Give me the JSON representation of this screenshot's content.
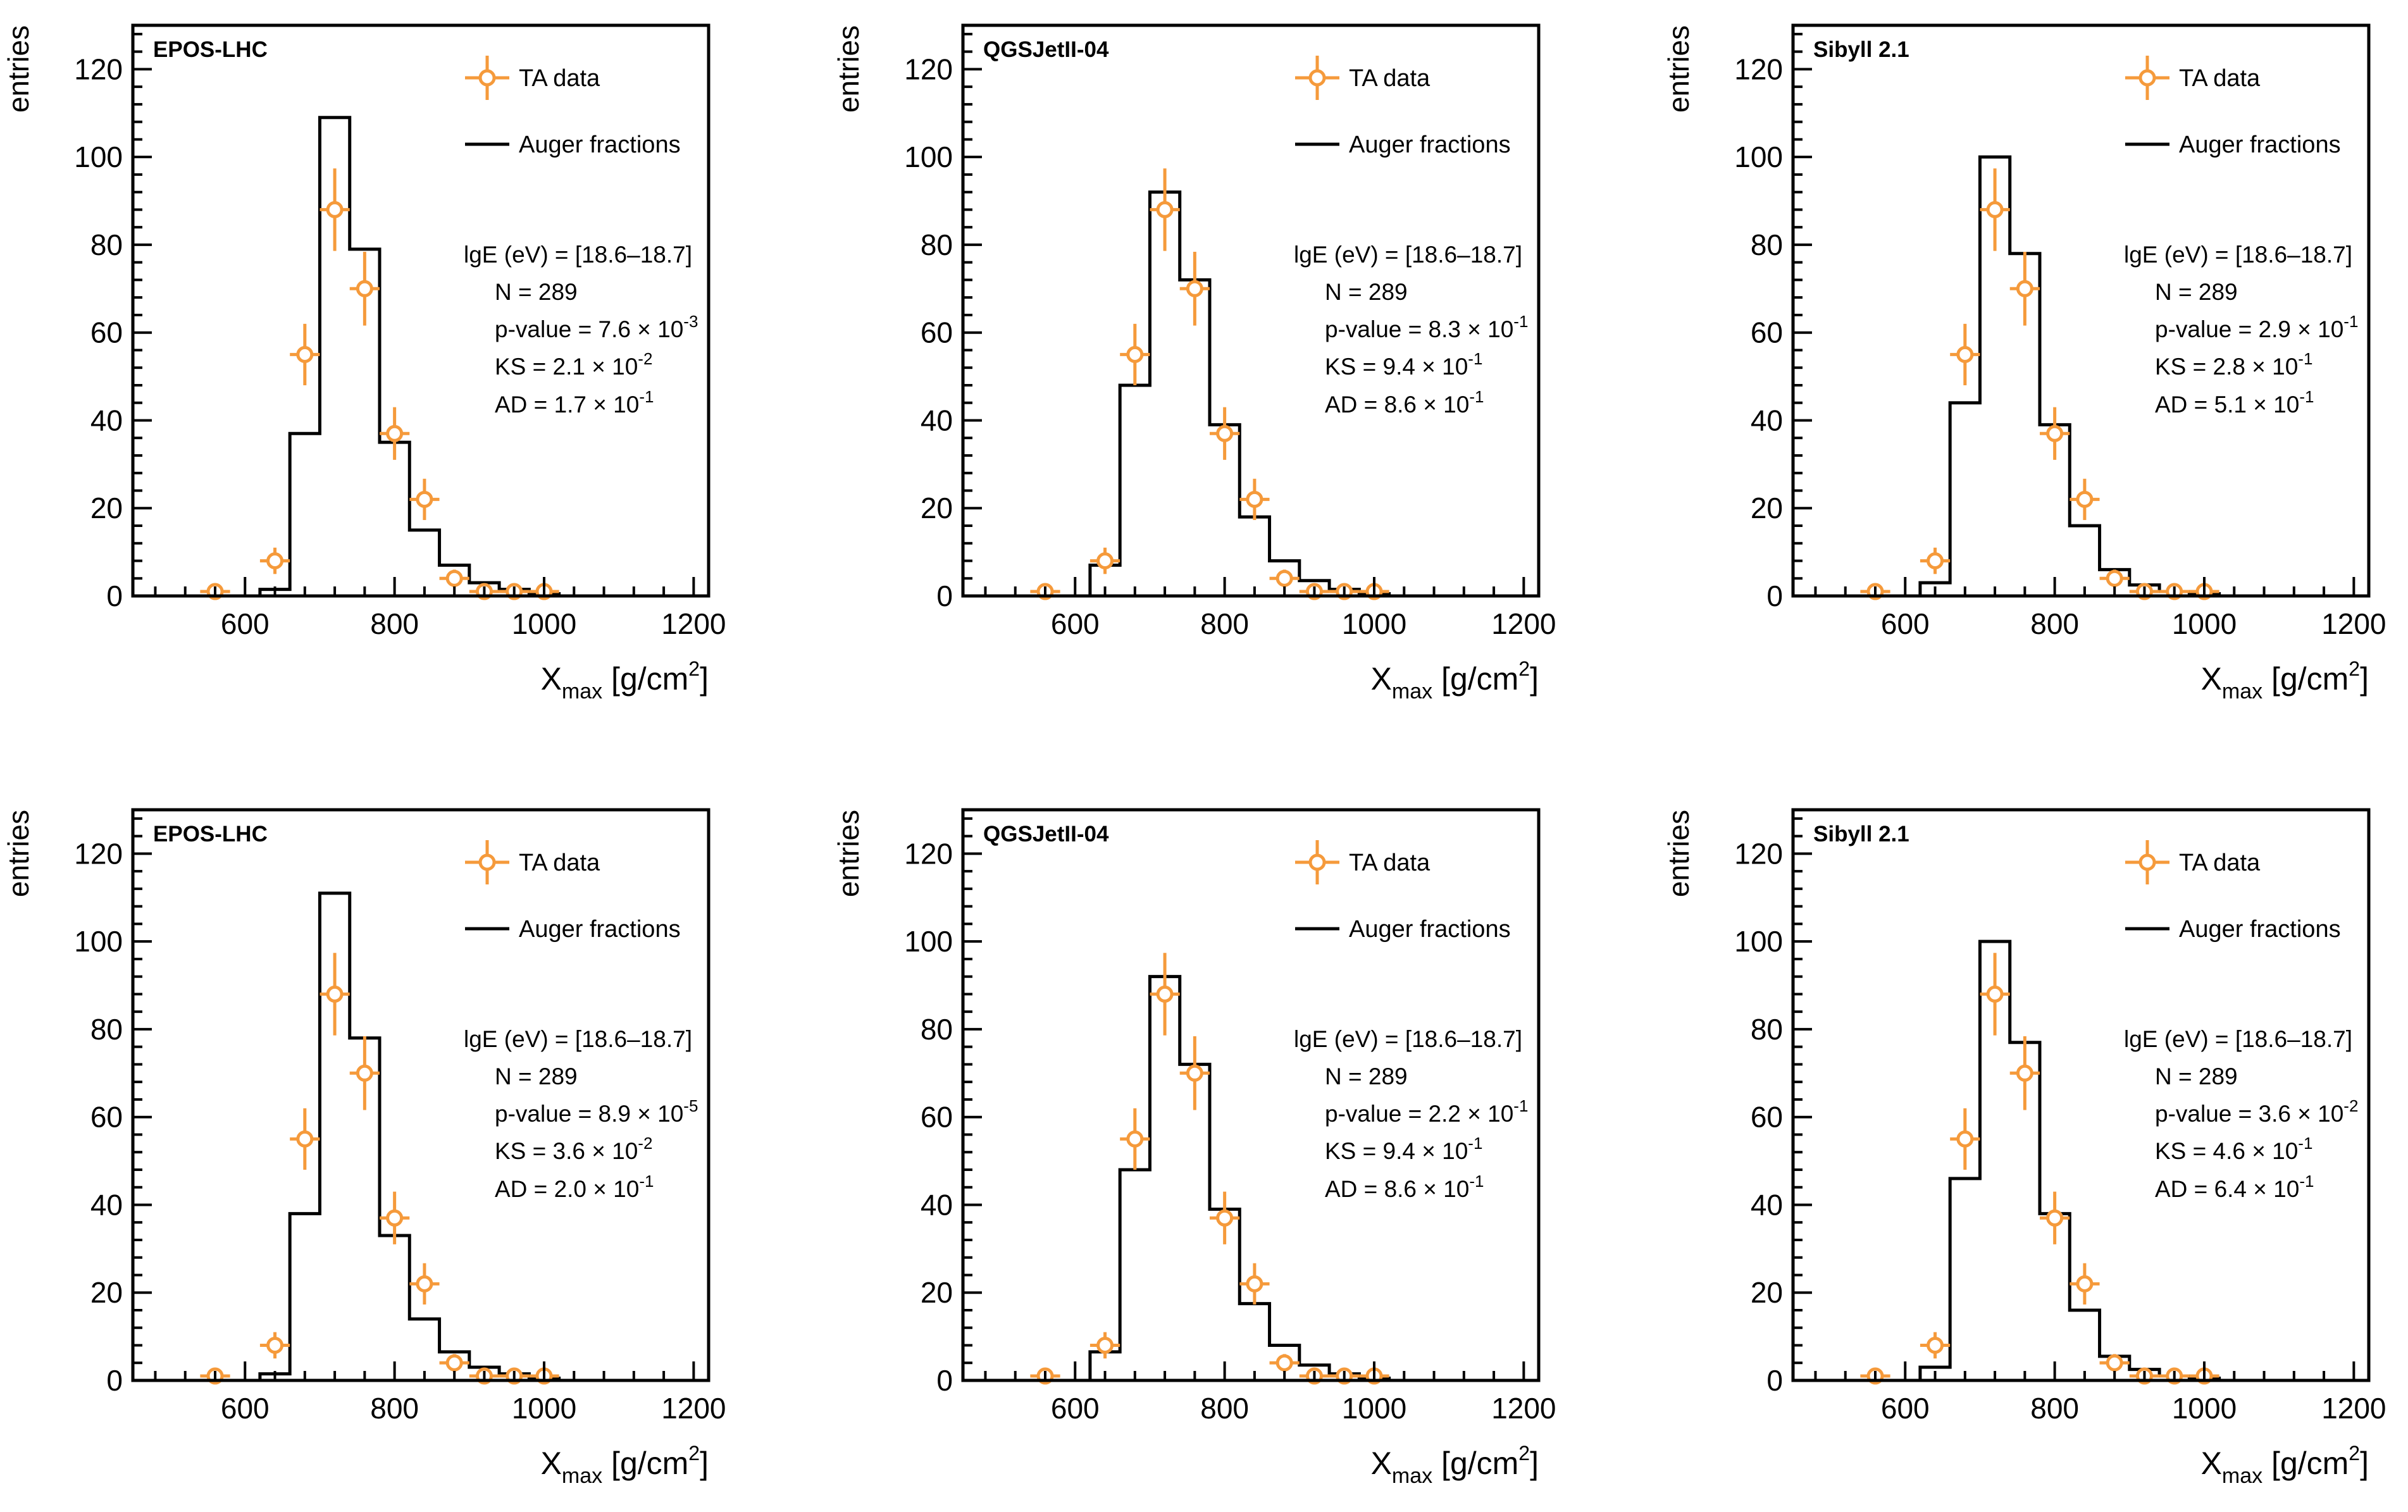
{
  "figure": {
    "title": "",
    "ylabel": "entries",
    "xlabel": {
      "main": "X",
      "sub": "max",
      "unit_pre": " [g/cm",
      "unit_sup": "2",
      "unit_post": "]"
    },
    "legend": {
      "data": "TA data",
      "model": "Auger fractions"
    },
    "stat_labels": {
      "energy": "lgE (eV) = [18.6–18.7]",
      "n": "N = 289",
      "p": "p-value = ",
      "ks": "KS = ",
      "ad": "AD = "
    },
    "colors": {
      "data": "#f59a3b",
      "hist": "#000000"
    }
  },
  "chart_data": [
    {
      "type": "bar",
      "model": "EPOS-LHC",
      "row": 1,
      "xlim": [
        450,
        1220
      ],
      "ylim": [
        0,
        130
      ],
      "bin_width": 40,
      "data_points": {
        "x": [
          560,
          640,
          680,
          720,
          760,
          800,
          840,
          880,
          920,
          960,
          1000
        ],
        "y": [
          1,
          8,
          55,
          88,
          70,
          37,
          22,
          4,
          1,
          1,
          1
        ],
        "err": [
          1,
          3,
          7,
          9.4,
          8.4,
          6,
          4.7,
          2,
          1,
          1,
          1
        ]
      },
      "histogram": {
        "bin_edges": [
          620,
          660,
          700,
          740,
          780,
          820,
          860,
          900,
          940,
          980,
          1020
        ],
        "values": [
          1.5,
          37,
          109,
          79,
          35,
          15,
          7,
          3,
          1.5,
          0.5
        ]
      },
      "stats": {
        "p_value": {
          "m": "7.6",
          "e": "-3"
        },
        "ks": {
          "m": "2.1",
          "e": "-2"
        },
        "ad": {
          "m": "1.7",
          "e": "-1"
        }
      }
    },
    {
      "type": "bar",
      "model": "QGSJetII-04",
      "row": 1,
      "xlim": [
        450,
        1220
      ],
      "ylim": [
        0,
        130
      ],
      "bin_width": 40,
      "data_points": {
        "x": [
          560,
          640,
          680,
          720,
          760,
          800,
          840,
          880,
          920,
          960,
          1000
        ],
        "y": [
          1,
          8,
          55,
          88,
          70,
          37,
          22,
          4,
          1,
          1,
          1
        ],
        "err": [
          1,
          3,
          7,
          9.4,
          8.4,
          6,
          4.7,
          2,
          1,
          1,
          1
        ]
      },
      "histogram": {
        "bin_edges": [
          620,
          660,
          700,
          740,
          780,
          820,
          860,
          900,
          940,
          980,
          1020
        ],
        "values": [
          7,
          48,
          92,
          72,
          39,
          18,
          8,
          3.5,
          1.5,
          0.5
        ]
      },
      "stats": {
        "p_value": {
          "m": "8.3",
          "e": "-1"
        },
        "ks": {
          "m": "9.4",
          "e": "-1"
        },
        "ad": {
          "m": "8.6",
          "e": "-1"
        }
      }
    },
    {
      "type": "bar",
      "model": "Sibyll 2.1",
      "row": 1,
      "xlim": [
        450,
        1220
      ],
      "ylim": [
        0,
        130
      ],
      "bin_width": 40,
      "data_points": {
        "x": [
          560,
          640,
          680,
          720,
          760,
          800,
          840,
          880,
          920,
          960,
          1000
        ],
        "y": [
          1,
          8,
          55,
          88,
          70,
          37,
          22,
          4,
          1,
          1,
          1
        ],
        "err": [
          1,
          3,
          7,
          9.4,
          8.4,
          6,
          4.7,
          2,
          1,
          1,
          1
        ]
      },
      "histogram": {
        "bin_edges": [
          620,
          660,
          700,
          740,
          780,
          820,
          860,
          900,
          940,
          980,
          1020
        ],
        "values": [
          3,
          44,
          100,
          78,
          39,
          16,
          6,
          2.5,
          1,
          0.5
        ]
      },
      "stats": {
        "p_value": {
          "m": "2.9",
          "e": "-1"
        },
        "ks": {
          "m": "2.8",
          "e": "-1"
        },
        "ad": {
          "m": "5.1",
          "e": "-1"
        }
      }
    },
    {
      "type": "bar",
      "model": "EPOS-LHC",
      "row": 2,
      "xlim": [
        450,
        1220
      ],
      "ylim": [
        0,
        130
      ],
      "bin_width": 40,
      "data_points": {
        "x": [
          560,
          640,
          680,
          720,
          760,
          800,
          840,
          880,
          920,
          960,
          1000
        ],
        "y": [
          1,
          8,
          55,
          88,
          70,
          37,
          22,
          4,
          1,
          1,
          1
        ],
        "err": [
          1,
          3,
          7,
          9.4,
          8.4,
          6,
          4.7,
          2,
          1,
          1,
          1
        ]
      },
      "histogram": {
        "bin_edges": [
          620,
          660,
          700,
          740,
          780,
          820,
          860,
          900,
          940,
          980,
          1020
        ],
        "values": [
          1.5,
          38,
          111,
          78,
          33,
          14,
          6.5,
          3,
          1.5,
          0.5
        ]
      },
      "stats": {
        "p_value": {
          "m": "8.9",
          "e": "-5"
        },
        "ks": {
          "m": "3.6",
          "e": "-2"
        },
        "ad": {
          "m": "2.0",
          "e": "-1"
        }
      }
    },
    {
      "type": "bar",
      "model": "QGSJetII-04",
      "row": 2,
      "xlim": [
        450,
        1220
      ],
      "ylim": [
        0,
        130
      ],
      "bin_width": 40,
      "data_points": {
        "x": [
          560,
          640,
          680,
          720,
          760,
          800,
          840,
          880,
          920,
          960,
          1000
        ],
        "y": [
          1,
          8,
          55,
          88,
          70,
          37,
          22,
          4,
          1,
          1,
          1
        ],
        "err": [
          1,
          3,
          7,
          9.4,
          8.4,
          6,
          4.7,
          2,
          1,
          1,
          1
        ]
      },
      "histogram": {
        "bin_edges": [
          620,
          660,
          700,
          740,
          780,
          820,
          860,
          900,
          940,
          980,
          1020
        ],
        "values": [
          6.5,
          48,
          92,
          72,
          39,
          17.5,
          8,
          3.5,
          1.5,
          0.5
        ]
      },
      "stats": {
        "p_value": {
          "m": "2.2",
          "e": "-1"
        },
        "ks": {
          "m": "9.4",
          "e": "-1"
        },
        "ad": {
          "m": "8.6",
          "e": "-1"
        }
      }
    },
    {
      "type": "bar",
      "model": "Sibyll 2.1",
      "row": 2,
      "xlim": [
        450,
        1220
      ],
      "ylim": [
        0,
        130
      ],
      "bin_width": 40,
      "data_points": {
        "x": [
          560,
          640,
          680,
          720,
          760,
          800,
          840,
          880,
          920,
          960,
          1000
        ],
        "y": [
          1,
          8,
          55,
          88,
          70,
          37,
          22,
          4,
          1,
          1,
          1
        ],
        "err": [
          1,
          3,
          7,
          9.4,
          8.4,
          6,
          4.7,
          2,
          1,
          1,
          1
        ]
      },
      "histogram": {
        "bin_edges": [
          620,
          660,
          700,
          740,
          780,
          820,
          860,
          900,
          940,
          980,
          1020
        ],
        "values": [
          3,
          46,
          100,
          77,
          38,
          16,
          5.5,
          2.5,
          1,
          0.5
        ]
      },
      "stats": {
        "p_value": {
          "m": "3.6",
          "e": "-2"
        },
        "ks": {
          "m": "4.6",
          "e": "-1"
        },
        "ad": {
          "m": "6.4",
          "e": "-1"
        }
      }
    }
  ],
  "axes": {
    "x_ticks": [
      600,
      800,
      1000,
      1200
    ],
    "y_ticks": [
      0,
      20,
      40,
      60,
      80,
      100,
      120
    ]
  }
}
